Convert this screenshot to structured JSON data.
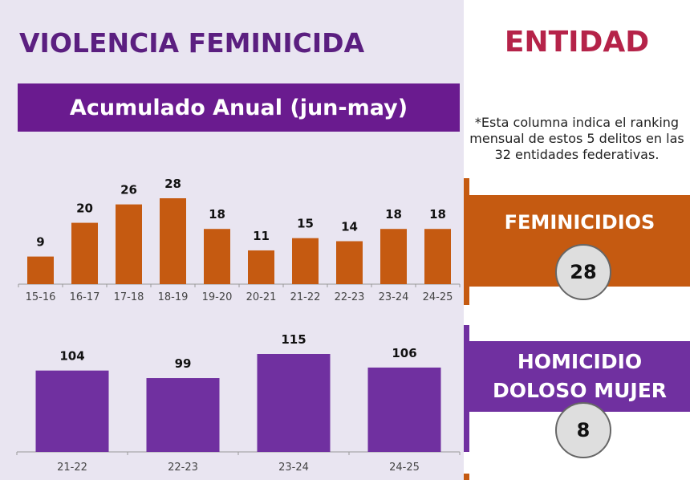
{
  "header": {
    "title": "VIOLENCIA FEMINICIDA",
    "subtitle": "Acumulado Anual (jun-may)"
  },
  "colors": {
    "orange": "#c55a11",
    "purple": "#7030a0",
    "title": "#5b1f80",
    "entidad": "#b52349"
  },
  "right": {
    "title": "ENTIDAD",
    "note": "*Esta columna indica el ranking mensual de estos 5 delitos en las 32 entidades federativas.",
    "rankings": [
      {
        "label": "FEMINICIDIOS",
        "rank": "28"
      },
      {
        "label_line1": "HOMICIDIO",
        "label_line2": "DOLOSO MUJER",
        "rank": "8"
      }
    ]
  },
  "chart_data": [
    {
      "type": "bar",
      "categories": [
        "15-16",
        "16-17",
        "17-18",
        "18-19",
        "19-20",
        "20-21",
        "21-22",
        "22-23",
        "23-24",
        "24-25"
      ],
      "values": [
        9,
        20,
        26,
        28,
        18,
        11,
        15,
        14,
        18,
        18
      ],
      "ylim": [
        0,
        28
      ],
      "color": "#c55a11",
      "grid": false
    },
    {
      "type": "bar",
      "categories": [
        "21-22",
        "22-23",
        "23-24",
        "24-25"
      ],
      "values": [
        104,
        99,
        115,
        106
      ],
      "ylim": [
        50,
        115
      ],
      "color": "#7030a0",
      "grid": false
    }
  ]
}
